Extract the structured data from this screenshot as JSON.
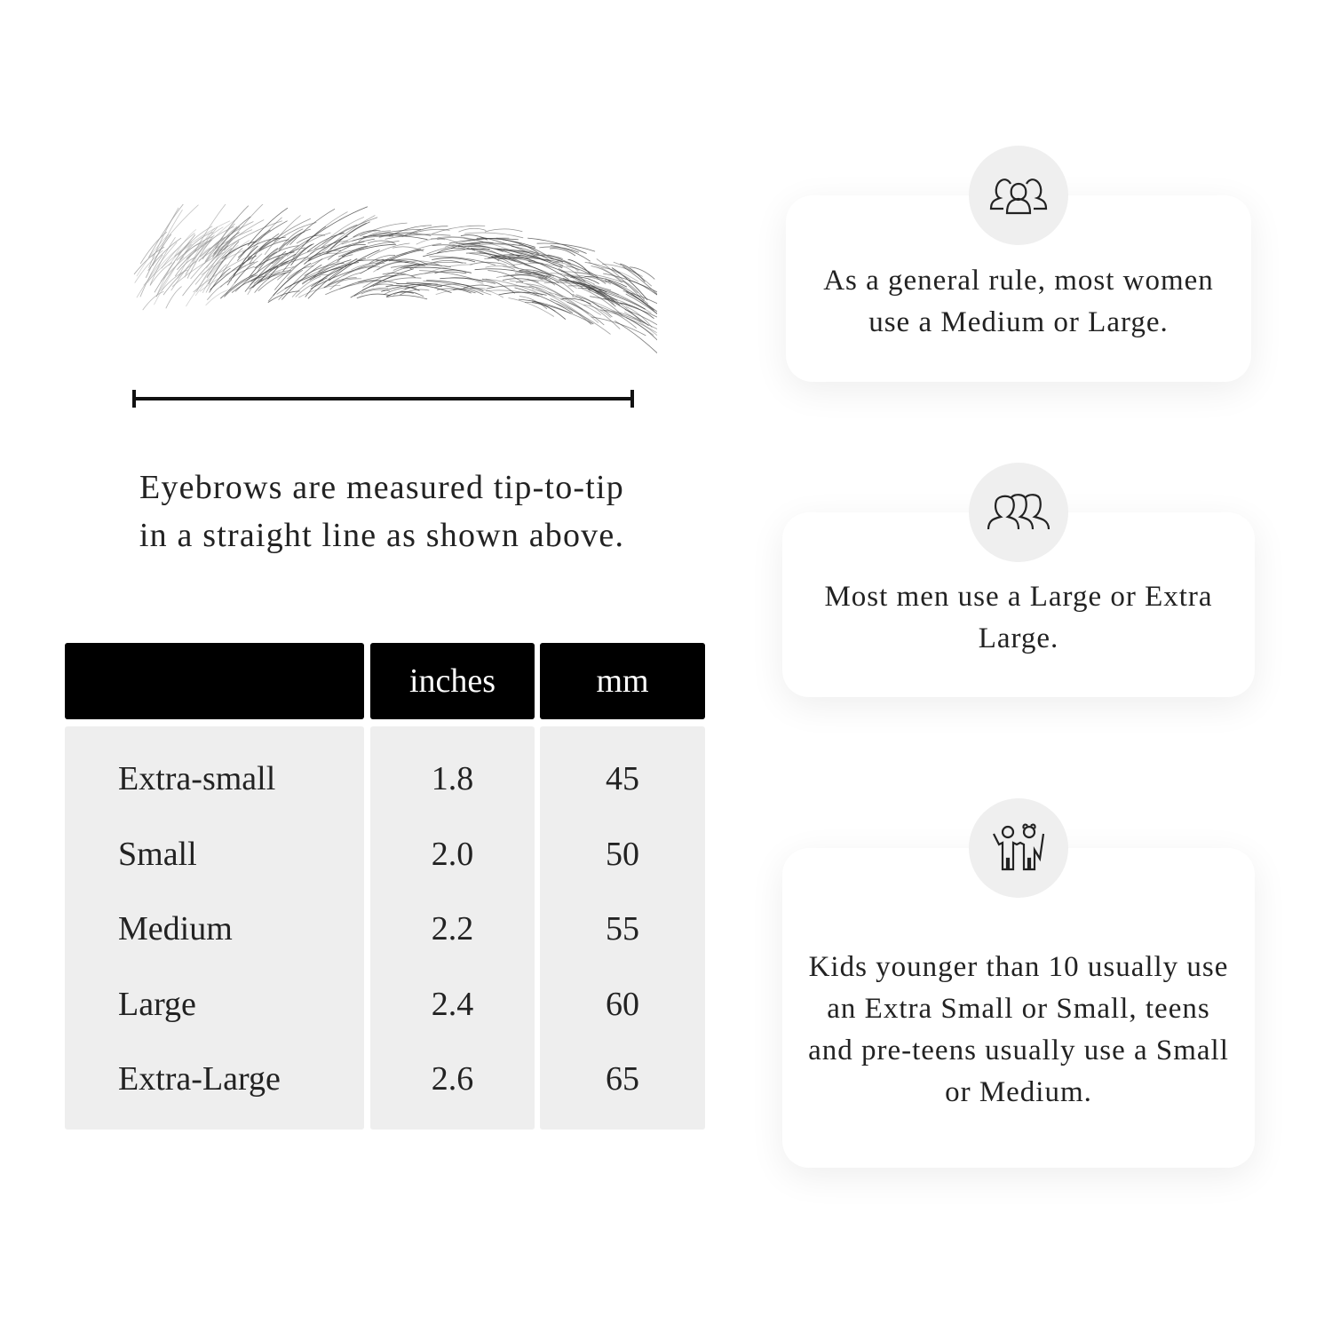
{
  "measurement": {
    "caption_line1": "Eyebrows are measured tip-to-tip",
    "caption_line2": "in a straight line as shown above."
  },
  "table": {
    "headers": [
      "",
      "inches",
      "mm"
    ],
    "rows": [
      {
        "size": "Extra-small",
        "inches": "1.8",
        "mm": "45"
      },
      {
        "size": "Small",
        "inches": "2.0",
        "mm": "50"
      },
      {
        "size": "Medium",
        "inches": "2.2",
        "mm": "55"
      },
      {
        "size": "Large",
        "inches": "2.4",
        "mm": "60"
      },
      {
        "size": "Extra-Large",
        "inches": "2.6",
        "mm": "65"
      }
    ]
  },
  "cards": [
    {
      "icon": "women-group-icon",
      "text": "As a general rule, most women use a Medium or Large."
    },
    {
      "icon": "men-group-icon",
      "text": "Most men use a Large or Extra Large."
    },
    {
      "icon": "kids-icon",
      "text": "Kids younger than 10 usually use an Extra Small or Small, teens and pre-teens usually use a Small or Medium."
    }
  ]
}
